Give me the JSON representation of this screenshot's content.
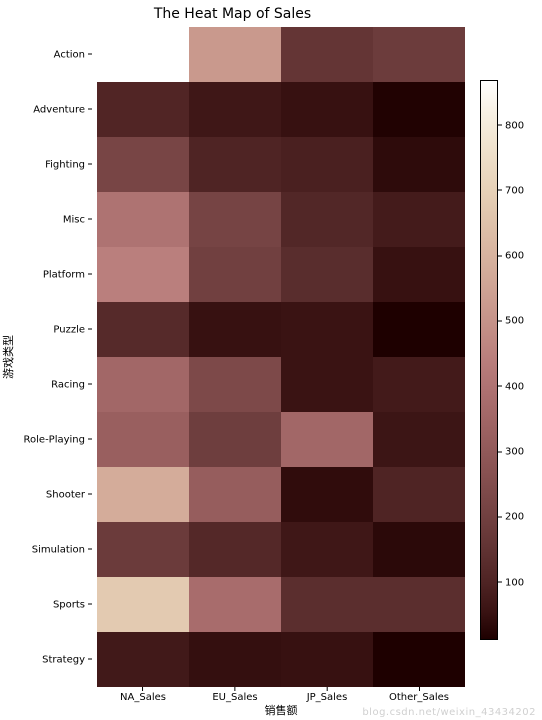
{
  "chart": {
    "type": "heatmap",
    "title": "The Heat Map of Sales",
    "title_fontsize": 14,
    "xlabel": "销售额",
    "ylabel": "游戏类型",
    "label_fontsize": 11,
    "tick_fontsize": 10,
    "background_color": "#ffffff",
    "x_categories": [
      "NA_Sales",
      "EU_Sales",
      "JP_Sales",
      "Other_Sales"
    ],
    "y_categories": [
      "Action",
      "Adventure",
      "Fighting",
      "Misc",
      "Platform",
      "Puzzle",
      "Racing",
      "Role-Playing",
      "Shooter",
      "Simulation",
      "Sports",
      "Strategy"
    ],
    "values": [
      [
        870,
        520,
        160,
        185
      ],
      [
        105,
        65,
        50,
        17
      ],
      [
        220,
        100,
        90,
        37
      ],
      [
        400,
        215,
        110,
        76
      ],
      [
        445,
        200,
        130,
        50
      ],
      [
        120,
        50,
        55,
        12
      ],
      [
        355,
        235,
        55,
        75
      ],
      [
        325,
        190,
        355,
        60
      ],
      [
        580,
        315,
        40,
        100
      ],
      [
        180,
        115,
        65,
        32
      ],
      [
        680,
        375,
        135,
        135
      ],
      [
        70,
        45,
        50,
        12
      ]
    ],
    "vmin": 12,
    "vmax": 870,
    "colormap_name": "pink",
    "colormap_stops": [
      [
        0.0,
        "#1e0000"
      ],
      [
        0.05,
        "#3a1313"
      ],
      [
        0.1,
        "#4e2323"
      ],
      [
        0.15,
        "#5d3030"
      ],
      [
        0.2,
        "#6c3c3c"
      ],
      [
        0.25,
        "#7a4747"
      ],
      [
        0.3,
        "#885252"
      ],
      [
        0.35,
        "#955c5c"
      ],
      [
        0.4,
        "#a26767"
      ],
      [
        0.45,
        "#ae7272"
      ],
      [
        0.5,
        "#b97e7c"
      ],
      [
        0.55,
        "#c28d85"
      ],
      [
        0.6,
        "#ca9b8f"
      ],
      [
        0.65,
        "#d2a998"
      ],
      [
        0.7,
        "#d9b6a1"
      ],
      [
        0.75,
        "#dfc3ab"
      ],
      [
        0.8,
        "#e6d0b6"
      ],
      [
        0.85,
        "#ecdbc4"
      ],
      [
        0.9,
        "#f2e7d4"
      ],
      [
        0.95,
        "#f8f2e7"
      ],
      [
        1.0,
        "#ffffff"
      ]
    ],
    "colorbar_ticks": [
      100,
      200,
      300,
      400,
      500,
      600,
      700,
      800
    ]
  },
  "watermark": "blog.csdn.net/weixin_43434202"
}
